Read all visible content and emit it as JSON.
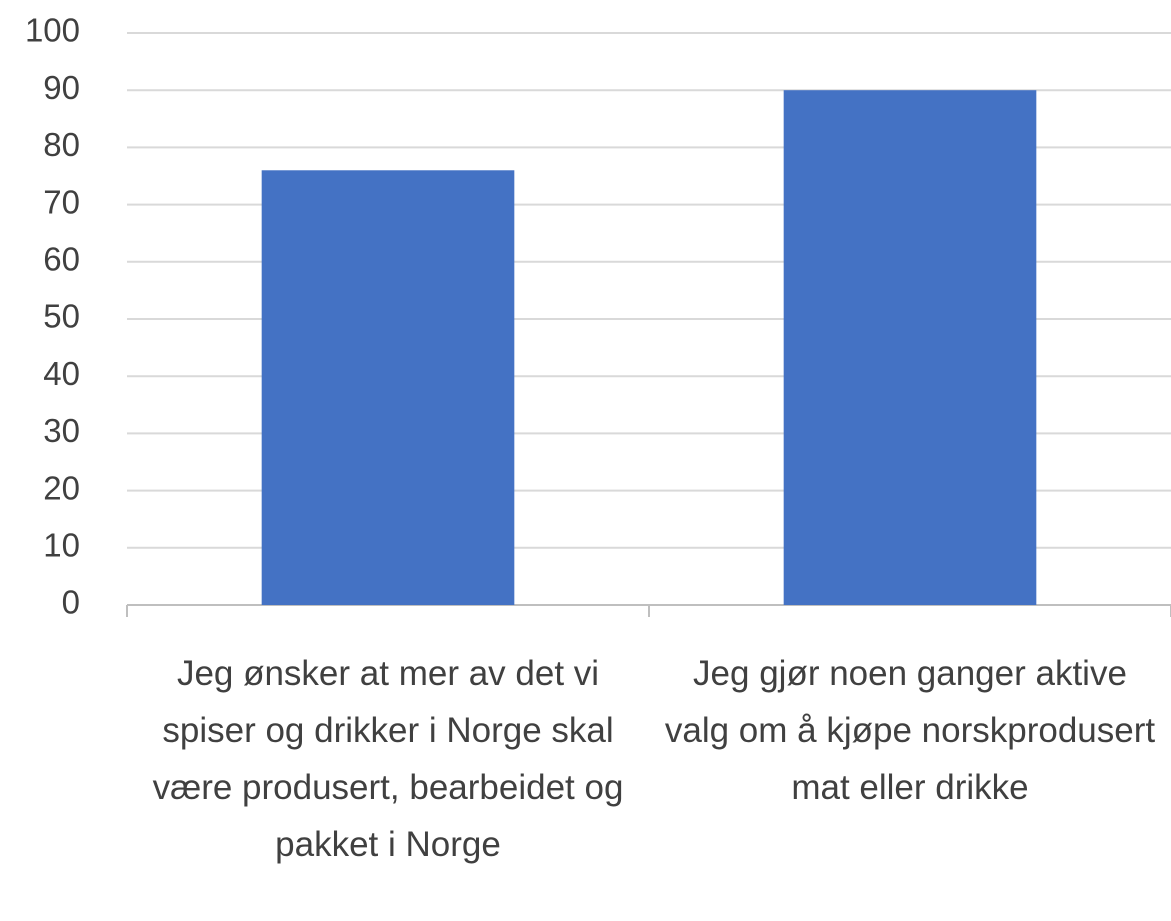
{
  "chart_data": {
    "type": "bar",
    "categories": [
      "Jeg ønsker at mer av det vi spiser og drikker i Norge skal være produsert, bearbeidet og pakket i Norge",
      "Jeg gjør noen ganger aktive valg om å kjøpe norskprodusert mat eller drikke"
    ],
    "values": [
      76,
      90
    ],
    "color": "#4472c4",
    "ylim": [
      0,
      100
    ],
    "yticks": [
      0,
      10,
      20,
      30,
      40,
      50,
      60,
      70,
      80,
      90,
      100
    ],
    "grid": true
  }
}
